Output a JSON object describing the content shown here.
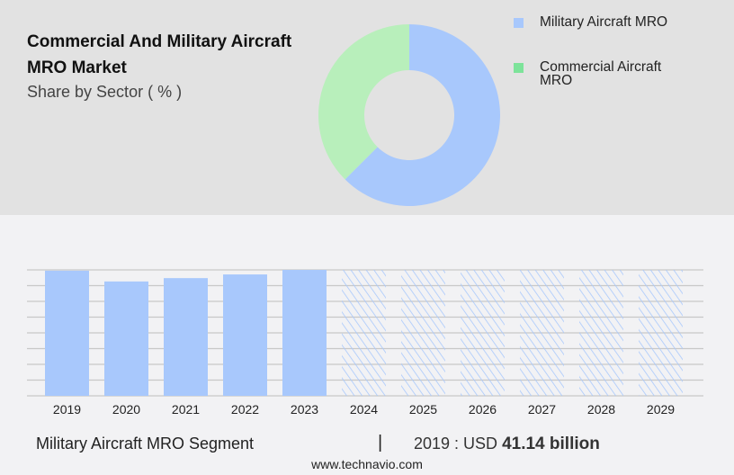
{
  "title": "Commercial And Military Aircraft MRO Market",
  "subtitle": "Share by Sector ( % )",
  "chart_data": [
    {
      "type": "pie",
      "donut": true,
      "legend": [
        "Military Aircraft MRO",
        "Commercial Aircraft MRO"
      ],
      "values": [
        62.5,
        37.5
      ],
      "colors": [
        "#a8c8fc",
        "#b8efbb"
      ],
      "legend_colors": [
        "#a8c8fc",
        "#7de39a"
      ],
      "legend_position": "right"
    },
    {
      "type": "bar",
      "categories": [
        "2019",
        "2020",
        "2021",
        "2022",
        "2023",
        "2024",
        "2025",
        "2026",
        "2027",
        "2028",
        "2029"
      ],
      "values": [
        41.14,
        37.6,
        38.7,
        39.9,
        41.4,
        null,
        null,
        null,
        null,
        null,
        null
      ],
      "forecast_hatched": [
        "2024",
        "2025",
        "2026",
        "2027",
        "2028",
        "2029"
      ],
      "ylim": [
        0,
        41.4
      ],
      "grid": true,
      "color": "#a8c8fc"
    }
  ],
  "footer": {
    "segment": "Military Aircraft MRO Segment",
    "separator": "|",
    "year_label": "2019 : USD",
    "value": "41.14 billion",
    "url": "www.technavio.com"
  }
}
